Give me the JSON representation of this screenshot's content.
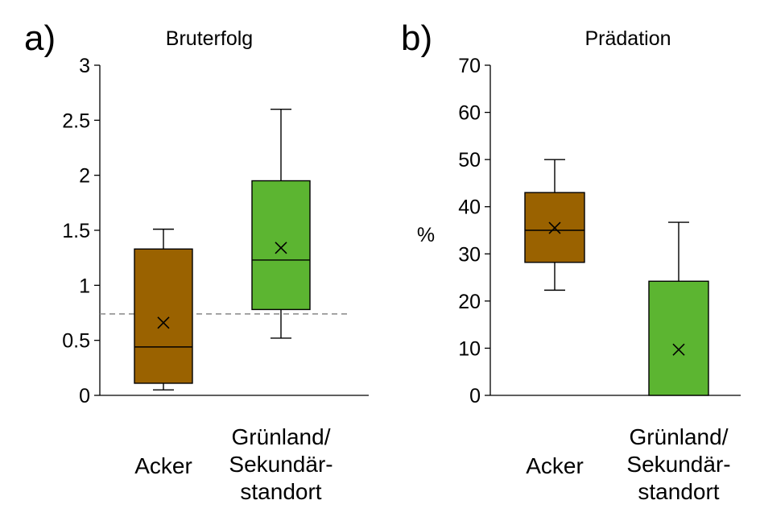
{
  "chart_data": [
    {
      "type": "box",
      "panel_label": "a)",
      "title": "Bruterfolg",
      "ylabel": "",
      "ylim": [
        0,
        3
      ],
      "yticks": [
        "0",
        "0.5",
        "1",
        "1.5",
        "2",
        "2.5",
        "3"
      ],
      "yticks_values": [
        0,
        0.5,
        1,
        1.5,
        2,
        2.5,
        3
      ],
      "categories": [
        [
          "Acker"
        ],
        [
          "Grünland/",
          "Sekundär-",
          "standort"
        ]
      ],
      "boxes": [
        {
          "category": "Acker",
          "whisker_low": 0.05,
          "q1": 0.11,
          "median": 0.44,
          "q3": 1.33,
          "whisker_high": 1.51,
          "mean": 0.66,
          "color": "#9a6200"
        },
        {
          "category": "Grünland/Sekundärstandort",
          "whisker_low": 0.52,
          "q1": 0.78,
          "median": 1.23,
          "q3": 1.95,
          "whisker_high": 2.6,
          "mean": 1.34,
          "color": "#5cb531"
        }
      ],
      "reference_line": {
        "value": 0.74,
        "style": "dashed",
        "color": "#888888"
      },
      "grid": false
    },
    {
      "type": "box",
      "panel_label": "b)",
      "title": "Prädation",
      "ylabel": "%",
      "ylim": [
        0,
        70
      ],
      "yticks": [
        "0",
        "10",
        "20",
        "30",
        "40",
        "50",
        "60",
        "70"
      ],
      "yticks_values": [
        0,
        10,
        20,
        30,
        40,
        50,
        60,
        70
      ],
      "categories": [
        [
          "Acker"
        ],
        [
          "Grünland/",
          "Sekundär-",
          "standort"
        ]
      ],
      "boxes": [
        {
          "category": "Acker",
          "whisker_low": 22.3,
          "q1": 28.2,
          "median": 35.0,
          "q3": 43.0,
          "whisker_high": 50.0,
          "mean": 35.5,
          "color": "#9a6200"
        },
        {
          "category": "Grünland/Sekundärstandort",
          "whisker_low": 0,
          "q1": 0,
          "median": 0,
          "q3": 24.2,
          "whisker_high": 36.7,
          "mean": 9.7,
          "color": "#5cb531"
        }
      ],
      "grid": false
    }
  ]
}
